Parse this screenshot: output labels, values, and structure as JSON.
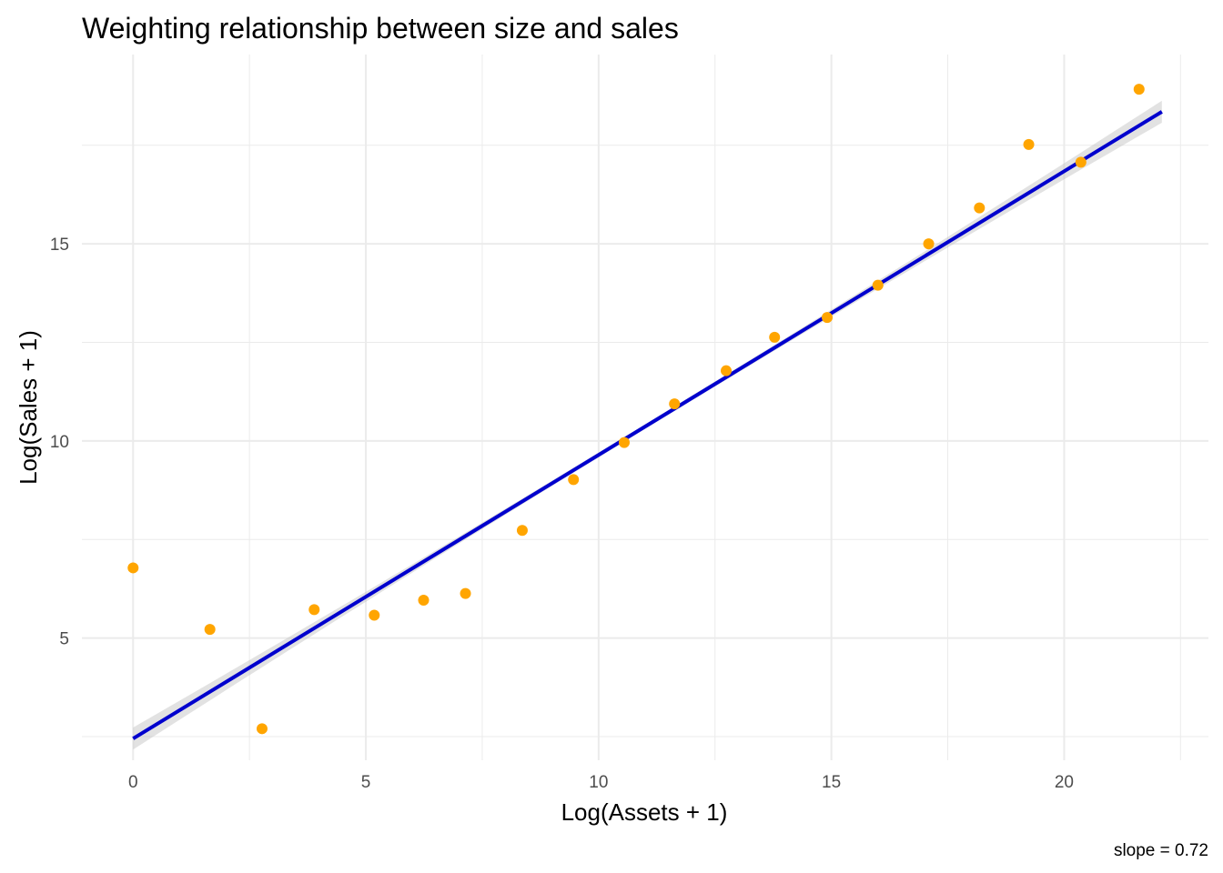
{
  "chart_data": {
    "type": "scatter",
    "title": "Weighting relationship between size and sales",
    "xlabel": "Log(Assets + 1)",
    "ylabel": "Log(Sales + 1)",
    "caption": "slope = 0.72",
    "xlim": [
      -1.1,
      23.1
    ],
    "ylim": [
      1.9,
      19.8
    ],
    "x_ticks": [
      0,
      5,
      10,
      15,
      20
    ],
    "y_ticks": [
      5,
      10,
      15
    ],
    "grid": true,
    "series": [
      {
        "x": [
          0,
          1.65,
          2.77,
          3.89,
          5.18,
          6.24,
          7.14,
          8.36,
          9.46,
          10.55,
          11.63,
          12.74,
          13.78,
          14.91,
          16.0,
          17.09,
          18.18,
          19.24,
          20.36,
          21.61
        ],
        "y": [
          6.78,
          5.22,
          2.7,
          5.72,
          5.58,
          5.96,
          6.13,
          7.73,
          9.02,
          9.96,
          10.94,
          11.78,
          12.63,
          13.13,
          13.95,
          15.0,
          15.91,
          17.52,
          17.07,
          18.92
        ],
        "color": "#FFA500"
      }
    ],
    "fit_line": {
      "x": [
        0,
        22.1
      ],
      "y": [
        2.45,
        18.35
      ],
      "color": "#0000CD",
      "ribbon_color": "#BEBEBE"
    }
  }
}
